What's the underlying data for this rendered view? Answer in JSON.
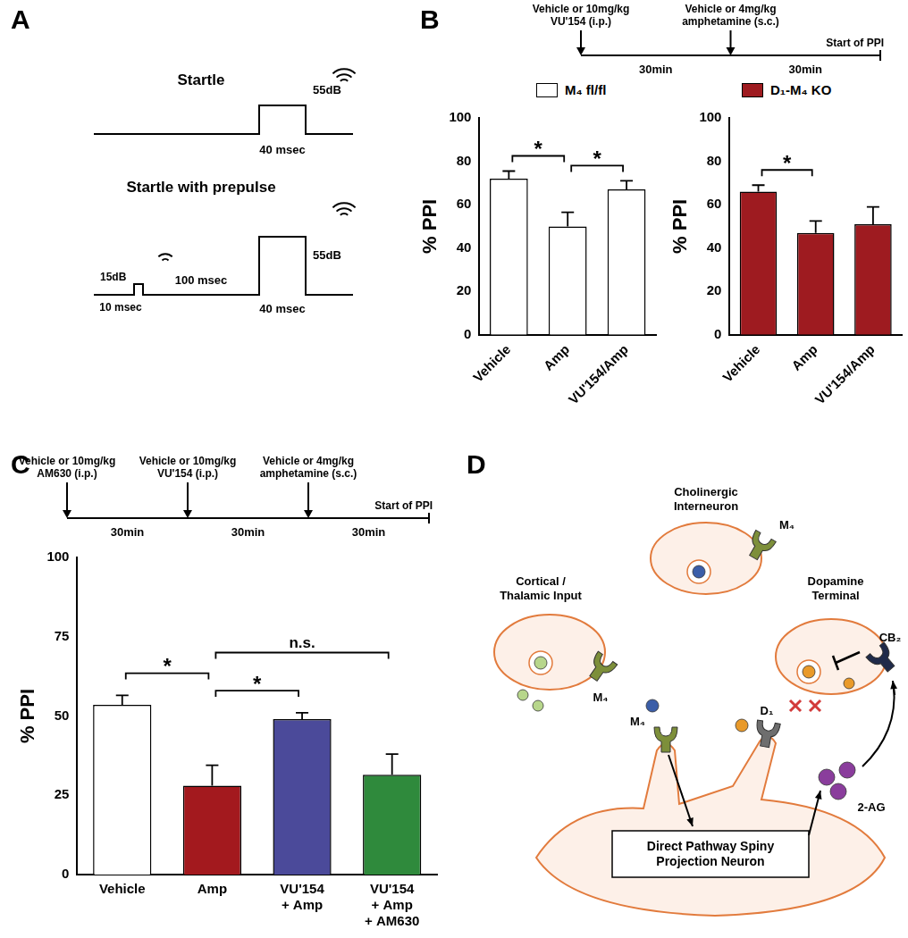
{
  "panel_labels": [
    "A",
    "B",
    "C",
    "D"
  ],
  "chart_data": [
    {
      "type": "bar",
      "categories": [
        "Vehicle",
        "Amp",
        "VU'154/Amp"
      ],
      "series": [
        {
          "name": "M₄ fl/fl",
          "color": "#ffffff",
          "values": [
            72,
            50,
            67
          ],
          "errors": [
            3.5,
            6.5,
            4
          ]
        }
      ],
      "y_label": "% PPI",
      "ylim": [
        0,
        100
      ],
      "yticks": [
        0,
        20,
        40,
        60,
        80,
        100
      ],
      "grid": false,
      "significance": [
        {
          "between": [
            0,
            1
          ],
          "label": "*"
        },
        {
          "between": [
            1,
            2
          ],
          "label": "*"
        }
      ]
    },
    {
      "type": "bar",
      "categories": [
        "Vehicle",
        "Amp",
        "VU'154/Amp"
      ],
      "series": [
        {
          "name": "D₁-M₄ KO",
          "color": "#9e1b20",
          "values": [
            66,
            47,
            51
          ],
          "errors": [
            3,
            5.5,
            8
          ]
        }
      ],
      "y_label": "% PPI",
      "ylim": [
        0,
        100
      ],
      "yticks": [
        0,
        20,
        40,
        60,
        80,
        100
      ],
      "grid": false,
      "significance": [
        {
          "between": [
            0,
            1
          ],
          "label": "*"
        }
      ]
    },
    {
      "type": "bar",
      "categories": [
        "Vehicle",
        "Amp",
        [
          "VU'154",
          "+ Amp"
        ],
        [
          "VU'154",
          "+ Amp",
          "+ AM630"
        ]
      ],
      "values": [
        53.5,
        28,
        49,
        31.5
      ],
      "errors": [
        3,
        6.5,
        2,
        6.5
      ],
      "colors": [
        "#ffffff",
        "#a3191e",
        "#4b4a9a",
        "#2f8a3c"
      ],
      "y_label": "% PPI",
      "ylim": [
        0,
        100
      ],
      "yticks": [
        0,
        25,
        50,
        75,
        100
      ],
      "grid": false,
      "significance": [
        {
          "between": [
            0,
            1
          ],
          "label": "*"
        },
        {
          "between": [
            1,
            2
          ],
          "label": "*"
        },
        {
          "between": [
            1,
            3
          ],
          "label": "n.s."
        }
      ]
    }
  ],
  "timelines": [
    {
      "events": [
        [
          "Vehicle or 10mg/kg",
          "VU'154 (i.p.)"
        ],
        [
          "Vehicle or 4mg/kg",
          "amphetamine (s.c.)"
        ]
      ],
      "intervals": [
        "30min",
        "30min"
      ],
      "end": "Start of PPI"
    },
    {
      "events": [
        [
          "Vehicle or 10mg/kg",
          "AM630 (i.p.)"
        ],
        [
          "Vehicle or 10mg/kg",
          "VU'154 (i.p.)"
        ],
        [
          "Vehicle or 4mg/kg",
          "amphetamine (s.c.)"
        ]
      ],
      "intervals": [
        "30min",
        "30min",
        "30min"
      ],
      "end": "Start of PPI"
    }
  ],
  "startle_diagram": {
    "traces": [
      {
        "title": "Startle",
        "pulse": {
          "level": "55dB",
          "duration": "40 msec"
        }
      },
      {
        "title": "Startle with prepulse",
        "prepulse": {
          "level": "15dB",
          "duration": "10 msec"
        },
        "gap": "100 msec",
        "pulse": {
          "level": "55dB",
          "duration": "40 msec"
        }
      }
    ]
  },
  "pathway_diagram": {
    "cells": {
      "cholinergic": [
        "Cholinergic",
        "Interneuron"
      ],
      "cortical": [
        "Cortical /",
        "Thalamic Input"
      ],
      "dopamine": [
        "Dopamine",
        "Terminal"
      ],
      "spn": [
        "Direct Pathway Spiny",
        "Projection Neuron"
      ]
    },
    "receptor_labels": {
      "cholinergic": "M₄",
      "cortical": "M₄",
      "postsynaptic": "M₄",
      "d1": "D₁",
      "cb2": "CB₂"
    },
    "messenger": "2-AG"
  }
}
